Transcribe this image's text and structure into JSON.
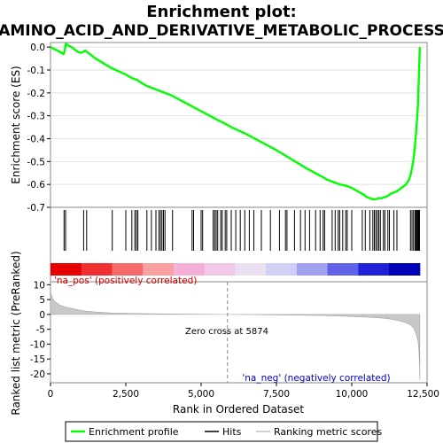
{
  "chart_data": {
    "type": "line",
    "title_line1": "Enrichment plot:",
    "title_line2": "AMINO_ACID_AND_DERIVATIVE_METABOLIC_PROCESS",
    "top_panel": {
      "ylabel": "Enrichment score (ES)",
      "ylim": [
        -0.7,
        0.02
      ],
      "yticks": [
        0.0,
        -0.1,
        -0.2,
        -0.3,
        -0.4,
        -0.5,
        -0.6,
        -0.7
      ],
      "ytick_labels": [
        "0.0",
        "-0.1",
        "-0.2",
        "-0.3",
        "-0.4",
        "-0.5",
        "-0.6",
        "-0.7"
      ],
      "series_name": "Enrichment profile",
      "color": "#00ff00",
      "x": [
        0,
        150,
        300,
        430,
        450,
        480,
        500,
        520,
        550,
        700,
        900,
        1000,
        1100,
        1150,
        1200,
        1300,
        1500,
        2000,
        2500,
        2700,
        2800,
        2900,
        3000,
        3200,
        3400,
        3600,
        3800,
        4000,
        4500,
        5000,
        5500,
        5874,
        6000,
        6500,
        7000,
        7500,
        8000,
        8500,
        9000,
        9200,
        9400,
        9600,
        9800,
        10000,
        10200,
        10400,
        10500,
        10600,
        10700,
        10800,
        10900,
        11000,
        11100,
        11200,
        11300,
        11400,
        11500,
        11600,
        11700,
        11800,
        11900,
        11950,
        12000,
        12050,
        12100,
        12150,
        12200,
        12230,
        12260
      ],
      "y": [
        0.0,
        -0.01,
        -0.02,
        -0.03,
        -0.025,
        -0.01,
        0.01,
        0.015,
        0.01,
        0.0,
        -0.02,
        -0.025,
        -0.02,
        -0.015,
        -0.02,
        -0.03,
        -0.05,
        -0.09,
        -0.12,
        -0.135,
        -0.14,
        -0.145,
        -0.155,
        -0.17,
        -0.18,
        -0.19,
        -0.2,
        -0.21,
        -0.245,
        -0.28,
        -0.315,
        -0.34,
        -0.35,
        -0.38,
        -0.415,
        -0.45,
        -0.49,
        -0.53,
        -0.565,
        -0.58,
        -0.59,
        -0.6,
        -0.605,
        -0.615,
        -0.63,
        -0.645,
        -0.655,
        -0.66,
        -0.665,
        -0.665,
        -0.66,
        -0.66,
        -0.655,
        -0.65,
        -0.64,
        -0.635,
        -0.63,
        -0.62,
        -0.61,
        -0.6,
        -0.58,
        -0.56,
        -0.53,
        -0.49,
        -0.43,
        -0.35,
        -0.25,
        -0.12,
        0.0
      ]
    },
    "hits_panel": {
      "series_name": "Hits",
      "hit_positions": [
        450,
        500,
        1100,
        1200,
        2050,
        2500,
        2700,
        2800,
        2850,
        2900,
        3200,
        3350,
        3500,
        3600,
        3650,
        3700,
        3750,
        3800,
        4050,
        4700,
        4750,
        5000,
        5050,
        5400,
        5450,
        5500,
        5550,
        5650,
        5700,
        5800,
        5850,
        6000,
        6150,
        6300,
        6450,
        6600,
        6750,
        7000,
        7300,
        7600,
        7800,
        7850,
        8100,
        8300,
        8450,
        8600,
        8800,
        8950,
        9050,
        9100,
        9350,
        9450,
        9550,
        9600,
        9700,
        9800,
        9850,
        10000,
        10350,
        10450,
        10600,
        10700,
        10750,
        10800,
        10850,
        10900,
        10950,
        11050,
        11100,
        11200,
        11250,
        11400,
        11500,
        11950,
        12000,
        12050,
        12100,
        12130,
        12160,
        12190,
        12220,
        12250
      ],
      "heatmap_colors": [
        "#e60000",
        "#f03030",
        "#f56b6b",
        "#f8a0a0",
        "#f4b0d8",
        "#f2c8e6",
        "#e8e0f0",
        "#d0d0f4",
        "#a0a0f0",
        "#6060e8",
        "#2020d8",
        "#0000b8"
      ]
    },
    "bottom_panel": {
      "ylabel": "Ranked list metric (PreRanked)",
      "ylim": [
        -23,
        11
      ],
      "yticks": [
        10,
        5,
        0,
        -5,
        -10,
        -15,
        -20
      ],
      "ytick_labels": [
        "10",
        "5",
        "0",
        "-5",
        "-10",
        "-15",
        "-20"
      ],
      "series_name": "Ranking metric scores",
      "x": [
        0,
        30,
        80,
        150,
        300,
        500,
        800,
        1100,
        1500,
        2000,
        3000,
        4000,
        5000,
        5874,
        7000,
        8000,
        9000,
        9500,
        10000,
        10500,
        11000,
        11300,
        11600,
        11800,
        11950,
        12050,
        12100,
        12150,
        12200,
        12230,
        12250,
        12260
      ],
      "y": [
        8.0,
        6.5,
        5.2,
        4.2,
        3.2,
        2.5,
        1.8,
        1.2,
        0.8,
        0.5,
        0.3,
        0.15,
        0.05,
        0.0,
        -0.1,
        -0.2,
        -0.35,
        -0.5,
        -0.7,
        -0.9,
        -1.2,
        -1.6,
        -2.2,
        -2.8,
        -3.5,
        -4.5,
        -5.5,
        -7.0,
        -9.0,
        -12.0,
        -17.0,
        -22.0
      ],
      "pos_label": "'na_pos' (positively correlated)",
      "neg_label": "'na_neg' (negatively correlated)",
      "zero_cross_label": "Zero cross at 5874",
      "zero_cross": 5874
    },
    "xlabel": "Rank in Ordered Dataset",
    "xlim": [
      0,
      12500
    ],
    "xticks": [
      0,
      2500,
      5000,
      7500,
      10000,
      12500
    ],
    "xtick_labels": [
      "0",
      "2,500",
      "5,000",
      "7,500",
      "10,000",
      "12,500"
    ],
    "legend": {
      "placement": "bottom",
      "entries": [
        "Enrichment profile",
        "Hits",
        "Ranking metric scores"
      ]
    }
  }
}
